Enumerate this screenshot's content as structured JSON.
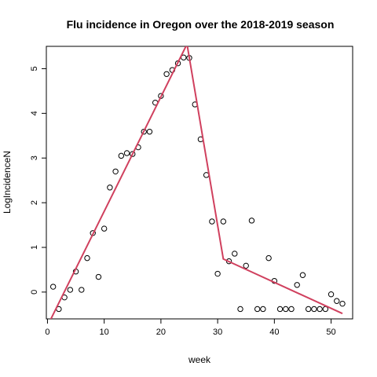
{
  "chart_data": {
    "type": "scatter",
    "title": "Flu incidence in Oregon over the 2018-2019 season",
    "xlabel": "week",
    "ylabel": "LogIncidenceN",
    "xlim": [
      -0.2,
      53.8
    ],
    "ylim": [
      -0.6,
      5.5
    ],
    "xticks": [
      0,
      10,
      20,
      30,
      40,
      50
    ],
    "yticks": [
      0,
      1,
      2,
      3,
      4,
      5
    ],
    "points": {
      "x": [
        1,
        2,
        3,
        4,
        5,
        6,
        7,
        8,
        9,
        10,
        11,
        12,
        13,
        14,
        15,
        16,
        17,
        18,
        19,
        20,
        21,
        22,
        23,
        24,
        25,
        26,
        27,
        28,
        29,
        30,
        31,
        32,
        33,
        34,
        35,
        36,
        37,
        38,
        39,
        40,
        41,
        42,
        43,
        44,
        45,
        46,
        47,
        48,
        49,
        50,
        51,
        52
      ],
      "y": [
        0.12,
        -0.38,
        -0.12,
        0.05,
        0.46,
        0.05,
        0.76,
        1.32,
        0.34,
        1.42,
        2.34,
        2.7,
        3.05,
        3.11,
        3.09,
        3.24,
        3.59,
        3.59,
        4.24,
        4.39,
        4.88,
        4.97,
        5.12,
        5.25,
        5.24,
        4.2,
        3.42,
        2.62,
        1.58,
        0.41,
        1.58,
        0.69,
        0.86,
        -0.38,
        0.59,
        1.6,
        -0.38,
        -0.38,
        0.76,
        0.25,
        -0.38,
        -0.38,
        -0.38,
        0.16,
        0.38,
        -0.38,
        -0.38,
        -0.38,
        -0.38,
        -0.05,
        -0.2,
        -0.26
      ]
    },
    "fit_line": {
      "color": "#d0405e",
      "x": [
        0.3,
        24.6,
        31,
        52
      ],
      "y": [
        -0.68,
        5.55,
        0.74,
        -0.48
      ]
    }
  }
}
